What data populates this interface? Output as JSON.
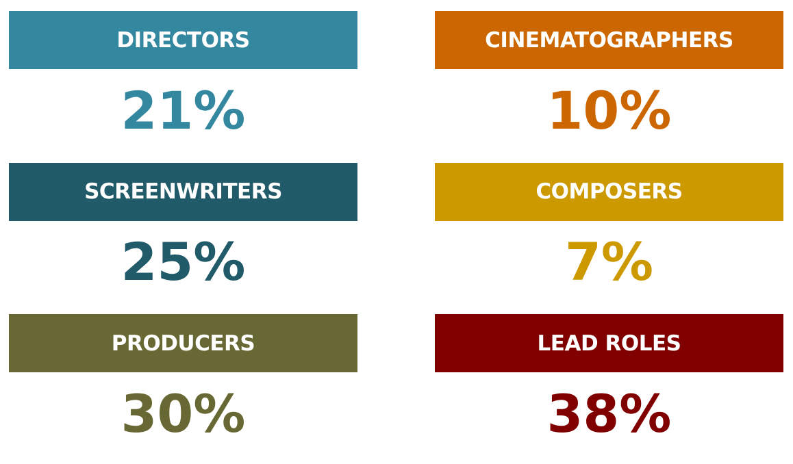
{
  "cards": [
    {
      "label": "DIRECTORS",
      "value": "21%",
      "color": "#33879e"
    },
    {
      "label": "CINEMATOGRAPHERS",
      "value": "10%",
      "color": "#cc6600"
    },
    {
      "label": "SCREENWRITERS",
      "value": "25%",
      "color": "#215a68"
    },
    {
      "label": "COMPOSERS",
      "value": "7%",
      "color": "#cc9900"
    },
    {
      "label": "PRODUCERS",
      "value": "30%",
      "color": "#686834"
    },
    {
      "label": "LEAD ROLES",
      "value": "38%",
      "color": "#800000"
    }
  ]
}
